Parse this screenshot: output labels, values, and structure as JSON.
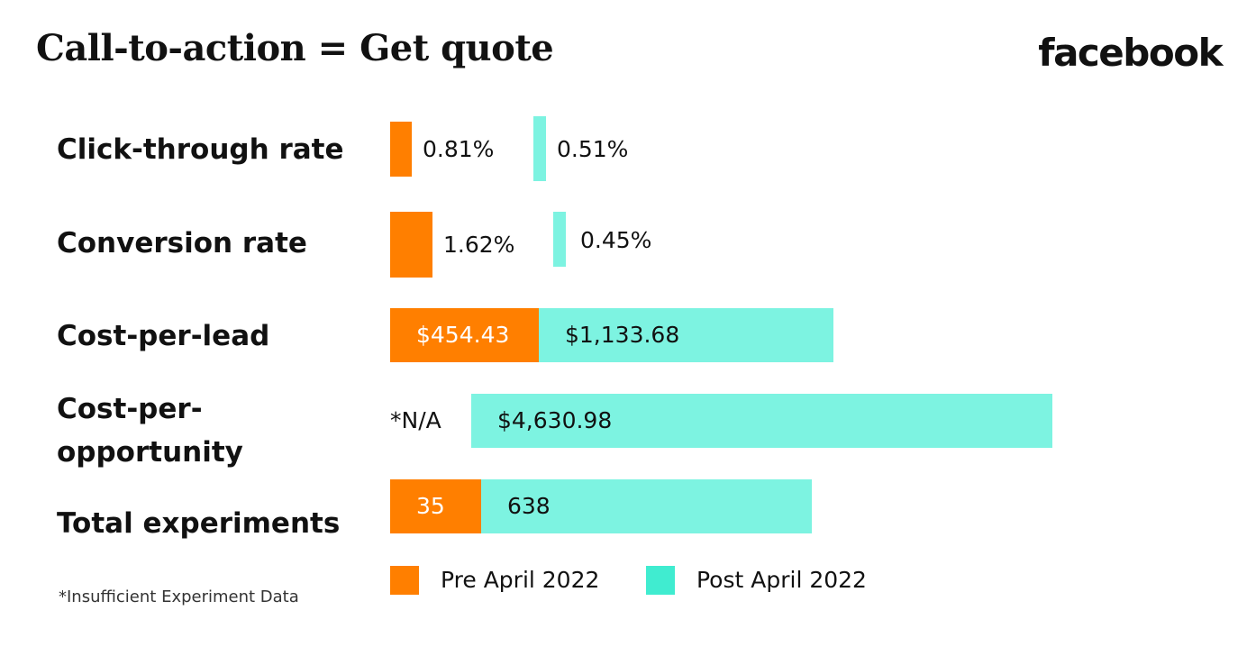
{
  "chart_data": {
    "type": "bar",
    "orientation": "horizontal",
    "title": "Call-to-action = Get quote",
    "categories": [
      "Click-through rate",
      "Conversion rate",
      "Cost-per-lead",
      "Cost-per-opportunity",
      "Total experiments"
    ],
    "series": [
      {
        "name": "Pre April 2022",
        "color": "#ff7f00",
        "values": [
          0.81,
          1.62,
          454.43,
          null,
          35
        ],
        "labels": [
          "0.81%",
          "1.62%",
          "$454.43",
          "*N/A",
          "35"
        ]
      },
      {
        "name": "Post April 2022",
        "color": "#40ecd0",
        "values": [
          0.51,
          0.45,
          1133.68,
          4630.98,
          638
        ],
        "labels": [
          "0.51%",
          "0.45%",
          "$1,133.68",
          "$4,630.98",
          "638"
        ]
      }
    ],
    "legend_position": "bottom",
    "grid": false
  },
  "brand": {
    "logo_text": "facebook"
  },
  "labels": {
    "row_0": "Click-through rate",
    "row_1": "Conversion rate",
    "row_2": "Cost-per-lead",
    "row_3_line1": "Cost-per-",
    "row_3_line2": "opportunity",
    "row_4": "Total experiments"
  },
  "footnote": "*Insufficient Experiment Data"
}
